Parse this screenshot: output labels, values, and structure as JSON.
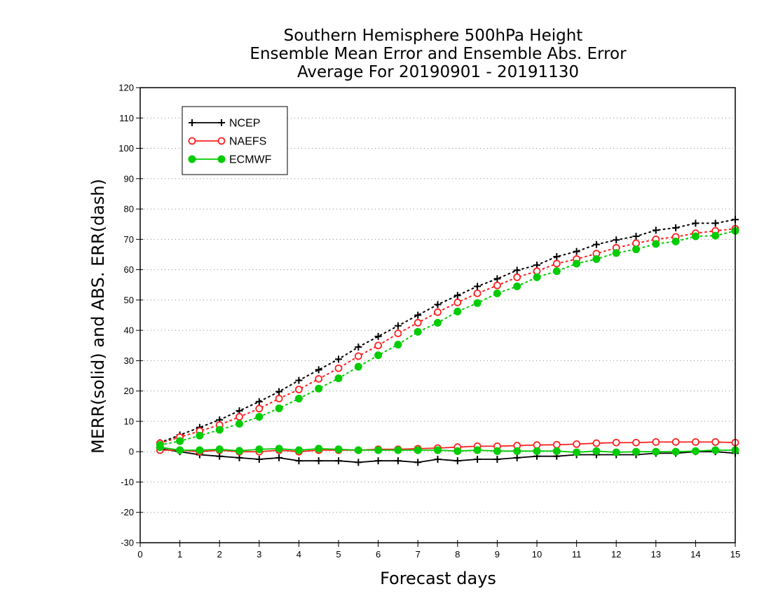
{
  "chart_data": {
    "type": "line",
    "title_lines": [
      "Southern Hemisphere 500hPa Height",
      "Ensemble Mean Error and Ensemble Abs. Error",
      "Average For 20190901 - 20191130"
    ],
    "xlabel": "Forecast days",
    "ylabel": "MERR(solid) and ABS. ERR(dash)",
    "xlim": [
      0,
      15
    ],
    "ylim": [
      -30,
      120
    ],
    "xticks": [
      0,
      1,
      2,
      3,
      4,
      5,
      6,
      7,
      8,
      9,
      10,
      11,
      12,
      13,
      14,
      15
    ],
    "yticks": [
      -30,
      -20,
      -10,
      0,
      10,
      20,
      30,
      40,
      50,
      60,
      70,
      80,
      90,
      100,
      110,
      120
    ],
    "grid": true,
    "legend_position": "top-left",
    "x": [
      0.5,
      1,
      1.5,
      2,
      2.5,
      3,
      3.5,
      4,
      4.5,
      5,
      5.5,
      6,
      6.5,
      7,
      7.5,
      8,
      8.5,
      9,
      9.5,
      10,
      10.5,
      11,
      11.5,
      12,
      12.5,
      13,
      13.5,
      14,
      14.5,
      15
    ],
    "series": [
      {
        "name": "NCEP",
        "color": "#000000",
        "marker": "plus",
        "abs_err": [
          3,
          5.5,
          8,
          10.5,
          13.5,
          16.5,
          19.8,
          23.5,
          27,
          30.5,
          34.5,
          38,
          41.5,
          45,
          48.5,
          51.5,
          54.5,
          57,
          59.8,
          61.5,
          64.3,
          66,
          68.3,
          69.8,
          71,
          73,
          73.8,
          75.3,
          75.3,
          76.5
        ],
        "mean_err": [
          1,
          0,
          -1,
          -1.5,
          -2,
          -2.5,
          -2,
          -3,
          -3,
          -3,
          -3.5,
          -3,
          -3,
          -3.5,
          -2.5,
          -3,
          -2.5,
          -2.5,
          -2,
          -1.5,
          -1.5,
          -1,
          -1,
          -1,
          -1,
          -0.5,
          -0.5,
          0,
          0,
          -0.5
        ]
      },
      {
        "name": "NAEFS",
        "color": "#ff2020",
        "marker": "open-circle",
        "abs_err": [
          2.8,
          4.8,
          6.8,
          8.8,
          11.5,
          14.2,
          17.5,
          20.5,
          24,
          27.5,
          31.5,
          35,
          39,
          42.5,
          46,
          49.2,
          52.2,
          54.8,
          57.5,
          59.5,
          62,
          63.5,
          65.3,
          67.2,
          68.7,
          70,
          70.8,
          72,
          72.8,
          73.5
        ],
        "mean_err": [
          0.5,
          0.5,
          0,
          0.5,
          0,
          0,
          0.5,
          0,
          0.5,
          0.5,
          0.5,
          0.8,
          0.8,
          1,
          1.2,
          1.5,
          1.8,
          1.8,
          2,
          2.2,
          2.3,
          2.5,
          2.8,
          3,
          3,
          3.2,
          3.2,
          3.2,
          3.2,
          3
        ]
      },
      {
        "name": "ECMWF",
        "color": "#00cc00",
        "marker": "filled-circle",
        "abs_err": [
          2.2,
          3.5,
          5.3,
          7.2,
          9.2,
          11.5,
          14.3,
          17.5,
          20.8,
          24.2,
          28,
          31.8,
          35.3,
          39.5,
          42.5,
          46.2,
          49,
          52.2,
          54.5,
          57.5,
          59.5,
          62,
          63.5,
          65.5,
          66.7,
          68.5,
          69.3,
          71,
          71.2,
          72.8
        ],
        "mean_err": [
          1.5,
          0.5,
          0.5,
          0.8,
          0.3,
          0.8,
          1,
          0.5,
          1,
          0.8,
          0.5,
          0.5,
          0.5,
          0.5,
          0.5,
          0.2,
          0.5,
          0.2,
          0.2,
          0.2,
          0.2,
          -0.2,
          0.2,
          -0.2,
          0,
          0,
          0,
          0.2,
          0.5,
          0.5
        ]
      }
    ]
  }
}
